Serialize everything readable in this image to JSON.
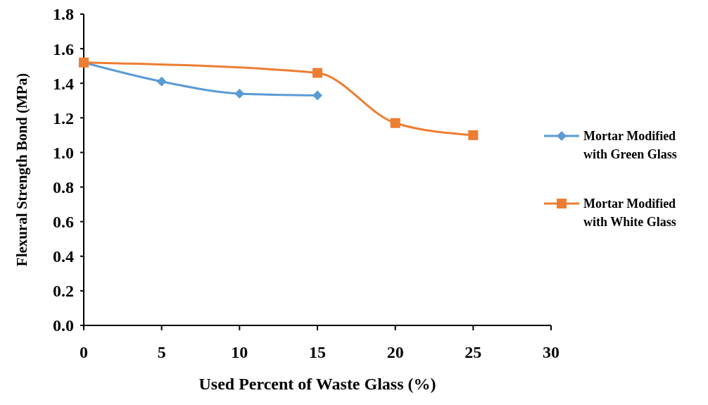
{
  "chart_data": {
    "type": "line",
    "xlabel": "Used Percent of Waste Glass (%)",
    "ylabel": "Flexural Strength Bond (MPa)",
    "xlim": [
      0,
      30
    ],
    "xticks": [
      0,
      5,
      10,
      15,
      20,
      25,
      30
    ],
    "ylim": [
      0,
      1.8
    ],
    "yticks": [
      {
        "value": 0,
        "label": "0.0"
      },
      {
        "value": 0.2,
        "label": "0.2"
      },
      {
        "value": 0.4,
        "label": "0.4"
      },
      {
        "value": 0.6,
        "label": "0.6"
      },
      {
        "value": 0.8,
        "label": "0.8"
      },
      {
        "value": 1,
        "label": "1.0"
      },
      {
        "value": 1.2,
        "label": "1.2"
      },
      {
        "value": 1.4,
        "label": "1.4"
      },
      {
        "value": 1.6,
        "label": "1.6"
      },
      {
        "value": 1.8,
        "label": "1.8"
      }
    ],
    "legend": "right",
    "grid": false,
    "series": [
      {
        "name": "Mortar Modified with Green Glass",
        "color": "#5b9bd5",
        "marker": "diamond",
        "x": [
          0,
          5,
          10,
          15
        ],
        "values": [
          1.52,
          1.41,
          1.34,
          1.33
        ]
      },
      {
        "name": "Mortar Modified with White Glass",
        "color": "#ed7d31",
        "marker": "square",
        "x": [
          0,
          15,
          20,
          25
        ],
        "values": [
          1.52,
          1.46,
          1.17,
          1.1
        ]
      }
    ]
  }
}
